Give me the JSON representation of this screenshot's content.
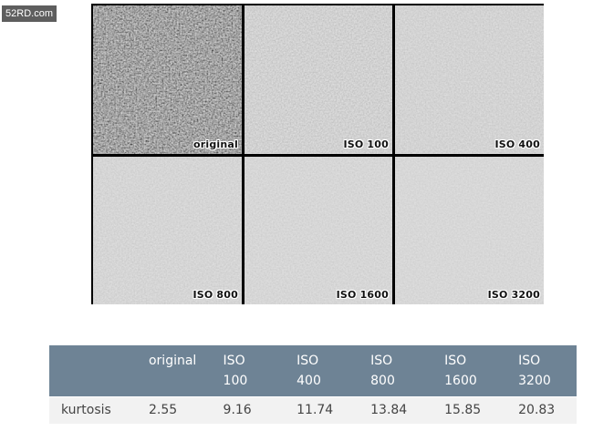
{
  "watermark": "52RD.com",
  "tiles": [
    {
      "label": "original",
      "tone": "#6f6f6f",
      "grain": "0.55",
      "contrast": "1.6"
    },
    {
      "label": "ISO 100",
      "tone": "#a9a9a9",
      "grain": "0.6",
      "contrast": "0.55"
    },
    {
      "label": "ISO 400",
      "tone": "#adadad",
      "grain": "0.6",
      "contrast": "0.45"
    },
    {
      "label": "ISO 800",
      "tone": "#b1b1b1",
      "grain": "0.6",
      "contrast": "0.42"
    },
    {
      "label": "ISO 1600",
      "tone": "#b3b3b3",
      "grain": "0.6",
      "contrast": "0.38"
    },
    {
      "label": "ISO 3200",
      "tone": "#b5b5b5",
      "grain": "0.6",
      "contrast": "0.32"
    }
  ],
  "table": {
    "header": {
      "c1": "original",
      "c2_line1": "ISO",
      "c2_line2": "100",
      "c3_line1": "ISO",
      "c3_line2": "400",
      "c4_line1": "ISO",
      "c4_line2": "800",
      "c5_line1": "ISO",
      "c5_line2": "1600",
      "c6_line1": "ISO",
      "c6_line2": "3200"
    },
    "row": {
      "label": "kurtosis",
      "values": [
        "2.55",
        "9.16",
        "11.74",
        "13.84",
        "15.85",
        "20.83"
      ]
    }
  }
}
